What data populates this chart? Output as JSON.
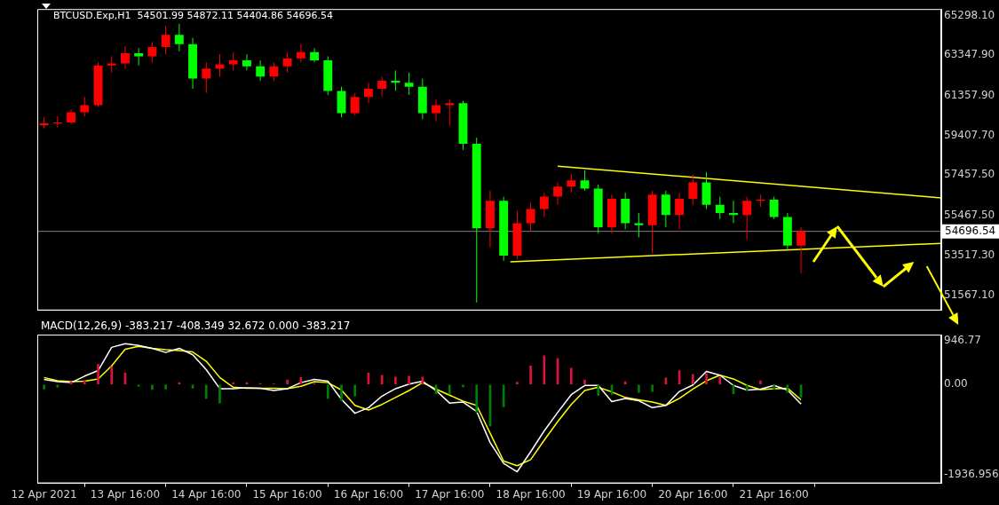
{
  "chart_data": [
    {
      "type": "candlestick",
      "title": "BTCUSD.Exp,H1  54501.99 54872.11 54404.86 54696.54",
      "tick_labels": "y",
      "marker": "none",
      "xlim": [
        "2021-04-12T14:00",
        "2021-04-23T17:30"
      ],
      "xticks": [
        "2021-04-12T16:00",
        "2021-04-13T16:00",
        "2021-04-14T16:00",
        "2021-04-15T16:00",
        "2021-04-16T16:00",
        "2021-04-17T16:00",
        "2021-04-18T16:00",
        "2021-04-19T16:00",
        "2021-04-20T16:00",
        "2021-04-21T16:00"
      ],
      "ylim": [
        50810,
        65620
      ],
      "yticks": [
        {
          "value": 65298.1,
          "label": "65298.10"
        },
        {
          "value": 63347.9,
          "label": "63347.90"
        },
        {
          "value": 61357.9,
          "label": "61357.90"
        },
        {
          "value": 59407.7,
          "label": "59407.70"
        },
        {
          "value": 57457.5,
          "label": "57457.50"
        },
        {
          "value": 55467.5,
          "label": "55467.50"
        },
        {
          "value": 53517.3,
          "label": "53517.30"
        },
        {
          "value": 51567.1,
          "label": "51567.10"
        }
      ],
      "x": [
        "2021-04-12T16:00",
        "2021-04-12T20:00",
        "2021-04-13T00:00",
        "2021-04-13T04:00",
        "2021-04-13T08:00",
        "2021-04-13T12:00",
        "2021-04-13T16:00",
        "2021-04-13T20:00",
        "2021-04-14T00:00",
        "2021-04-14T04:00",
        "2021-04-14T08:00",
        "2021-04-14T12:00",
        "2021-04-14T16:00",
        "2021-04-14T20:00",
        "2021-04-15T00:00",
        "2021-04-15T04:00",
        "2021-04-15T08:00",
        "2021-04-15T12:00",
        "2021-04-15T16:00",
        "2021-04-15T20:00",
        "2021-04-16T00:00",
        "2021-04-16T04:00",
        "2021-04-16T08:00",
        "2021-04-16T12:00",
        "2021-04-16T16:00",
        "2021-04-16T20:00",
        "2021-04-17T00:00",
        "2021-04-17T04:00",
        "2021-04-17T08:00",
        "2021-04-17T12:00",
        "2021-04-17T16:00",
        "2021-04-17T20:00",
        "2021-04-18T00:00",
        "2021-04-18T04:00",
        "2021-04-18T08:00",
        "2021-04-18T12:00",
        "2021-04-18T16:00",
        "2021-04-18T20:00",
        "2021-04-19T00:00",
        "2021-04-19T04:00",
        "2021-04-19T08:00",
        "2021-04-19T12:00",
        "2021-04-19T16:00",
        "2021-04-19T20:00",
        "2021-04-20T00:00",
        "2021-04-20T04:00",
        "2021-04-20T08:00",
        "2021-04-20T12:00",
        "2021-04-20T16:00",
        "2021-04-20T20:00",
        "2021-04-21T00:00",
        "2021-04-21T04:00",
        "2021-04-21T08:00",
        "2021-04-21T12:00",
        "2021-04-21T16:00",
        "2021-04-21T20:00",
        "2021-04-22T00:00"
      ],
      "ohlc": [
        [
          59900,
          60300,
          59750,
          60000
        ],
        [
          60000,
          60350,
          59800,
          60050
        ],
        [
          60050,
          60700,
          59950,
          60550
        ],
        [
          60550,
          61300,
          60350,
          60900
        ],
        [
          60900,
          63000,
          60800,
          62850
        ],
        [
          62850,
          63300,
          62500,
          62950
        ],
        [
          62950,
          63800,
          62700,
          63450
        ],
        [
          63450,
          63700,
          62850,
          63300
        ],
        [
          63300,
          64000,
          63000,
          63750
        ],
        [
          63750,
          64800,
          63400,
          64350
        ],
        [
          64350,
          64900,
          63550,
          63900
        ],
        [
          63900,
          64200,
          61700,
          62200
        ],
        [
          62200,
          63000,
          61500,
          62700
        ],
        [
          62700,
          63400,
          62300,
          62900
        ],
        [
          62900,
          63500,
          62600,
          63100
        ],
        [
          63100,
          63400,
          62600,
          62800
        ],
        [
          62800,
          63100,
          62100,
          62300
        ],
        [
          62300,
          63000,
          62100,
          62800
        ],
        [
          62800,
          63500,
          62500,
          63200
        ],
        [
          63200,
          63900,
          63000,
          63500
        ],
        [
          63500,
          63700,
          63000,
          63100
        ],
        [
          63100,
          63300,
          61400,
          61600
        ],
        [
          61600,
          61800,
          60300,
          60500
        ],
        [
          60500,
          61500,
          60400,
          61300
        ],
        [
          61300,
          62000,
          61000,
          61700
        ],
        [
          61700,
          62300,
          61300,
          62100
        ],
        [
          62100,
          62600,
          61600,
          62000
        ],
        [
          62000,
          62500,
          61400,
          61800
        ],
        [
          61800,
          62200,
          60200,
          60500
        ],
        [
          60500,
          61200,
          60100,
          60900
        ],
        [
          60900,
          61200,
          59900,
          61000
        ],
        [
          61000,
          61100,
          58700,
          59000
        ],
        [
          59000,
          59300,
          51200,
          54850
        ],
        [
          54850,
          56700,
          53900,
          56200
        ],
        [
          56200,
          56400,
          53250,
          53500
        ],
        [
          53500,
          55700,
          53300,
          55100
        ],
        [
          55100,
          56100,
          54700,
          55800
        ],
        [
          55800,
          56600,
          55400,
          56400
        ],
        [
          56400,
          57100,
          56000,
          56900
        ],
        [
          56900,
          57500,
          56600,
          57200
        ],
        [
          57200,
          57700,
          56700,
          56800
        ],
        [
          56800,
          57000,
          54600,
          54900
        ],
        [
          54900,
          56500,
          54600,
          56300
        ],
        [
          56300,
          56600,
          54800,
          55100
        ],
        [
          55100,
          55600,
          54400,
          55000
        ],
        [
          55000,
          56700,
          53600,
          56500
        ],
        [
          56500,
          56700,
          54900,
          55500
        ],
        [
          55500,
          56600,
          54800,
          56300
        ],
        [
          56300,
          57500,
          56000,
          57100
        ],
        [
          57100,
          57600,
          55800,
          56000
        ],
        [
          56000,
          56400,
          55300,
          55600
        ],
        [
          55600,
          56200,
          55100,
          55500
        ],
        [
          55500,
          56400,
          54300,
          56200
        ],
        [
          56200,
          56500,
          55900,
          56250
        ],
        [
          56250,
          56400,
          55300,
          55400
        ],
        [
          55400,
          55600,
          53800,
          54000
        ],
        [
          54000,
          54900,
          52650,
          54700
        ]
      ],
      "colors": [
        "#ff0000",
        "#ff0000",
        "#ff0000",
        "#ff0000",
        "#ff0000",
        "#ff0000",
        "#ff0000",
        "#00ff00",
        "#ff0000",
        "#ff0000",
        "#00ff00",
        "#00ff00",
        "#ff0000",
        "#ff0000",
        "#ff0000",
        "#00ff00",
        "#00ff00",
        "#ff0000",
        "#ff0000",
        "#ff0000",
        "#00ff00",
        "#00ff00",
        "#00ff00",
        "#ff0000",
        "#ff0000",
        "#ff0000",
        "#00ff00",
        "#00ff00",
        "#00ff00",
        "#ff0000",
        "#ff0000",
        "#00ff00",
        "#00ff00",
        "#ff0000",
        "#00ff00",
        "#ff0000",
        "#ff0000",
        "#ff0000",
        "#ff0000",
        "#ff0000",
        "#00ff00",
        "#00ff00",
        "#ff0000",
        "#00ff00",
        "#00ff00",
        "#ff0000",
        "#00ff00",
        "#ff0000",
        "#ff0000",
        "#00ff00",
        "#00ff00",
        "#00ff00",
        "#ff0000",
        "#ff0000",
        "#00ff00",
        "#00ff00",
        "#ff0000"
      ],
      "series": [
        {
          "type": "line",
          "x": [
            "2021-04-19T00:00",
            "2021-04-23T17:30"
          ],
          "values": [
            57900,
            56340
          ],
          "color": "#ffff00"
        },
        {
          "type": "line",
          "x": [
            "2021-04-18T10:00",
            "2021-04-23T17:30"
          ],
          "values": [
            53200,
            54110
          ],
          "color": "#ffff00"
        }
      ],
      "ref_lines": [
        {
          "axis": "y",
          "value": 54696.54,
          "label": "54696.54",
          "color": "#808080"
        }
      ]
    },
    {
      "type": "bar",
      "title": "MACD(12,26,9) -383.217 -408.349 32.672 0.000 -383.217",
      "marker": "none",
      "xlim": [
        "2021-04-12T14:00",
        "2021-04-23T17:30"
      ],
      "xticks": [
        {
          "value": "2021-04-12T16:00",
          "label": "12 Apr 2021"
        },
        {
          "value": "2021-04-13T16:00",
          "label": "13 Apr 16:00"
        },
        {
          "value": "2021-04-14T16:00",
          "label": "14 Apr 16:00"
        },
        {
          "value": "2021-04-15T16:00",
          "label": "15 Apr 16:00"
        },
        {
          "value": "2021-04-16T16:00",
          "label": "16 Apr 16:00"
        },
        {
          "value": "2021-04-17T16:00",
          "label": "17 Apr 16:00"
        },
        {
          "value": "2021-04-18T16:00",
          "label": "18 Apr 16:00"
        },
        {
          "value": "2021-04-19T16:00",
          "label": "19 Apr 16:00"
        },
        {
          "value": "2021-04-20T16:00",
          "label": "20 Apr 16:00"
        },
        {
          "value": "2021-04-21T16:00",
          "label": "21 Apr 16:00"
        }
      ],
      "ylim": [
        -2130,
        1075
      ],
      "yticks": [
        946.77,
        {
          "value": 0,
          "label": "0.00"
        },
        -1936.956
      ],
      "x": [
        "2021-04-12T16:00",
        "2021-04-12T20:00",
        "2021-04-13T00:00",
        "2021-04-13T04:00",
        "2021-04-13T08:00",
        "2021-04-13T12:00",
        "2021-04-13T16:00",
        "2021-04-13T20:00",
        "2021-04-14T00:00",
        "2021-04-14T04:00",
        "2021-04-14T08:00",
        "2021-04-14T12:00",
        "2021-04-14T16:00",
        "2021-04-14T20:00",
        "2021-04-15T00:00",
        "2021-04-15T04:00",
        "2021-04-15T08:00",
        "2021-04-15T12:00",
        "2021-04-15T16:00",
        "2021-04-15T20:00",
        "2021-04-16T00:00",
        "2021-04-16T04:00",
        "2021-04-16T08:00",
        "2021-04-16T12:00",
        "2021-04-16T16:00",
        "2021-04-16T20:00",
        "2021-04-17T00:00",
        "2021-04-17T04:00",
        "2021-04-17T08:00",
        "2021-04-17T12:00",
        "2021-04-17T16:00",
        "2021-04-17T20:00",
        "2021-04-18T00:00",
        "2021-04-18T04:00",
        "2021-04-18T08:00",
        "2021-04-18T12:00",
        "2021-04-18T16:00",
        "2021-04-18T20:00",
        "2021-04-19T00:00",
        "2021-04-19T04:00",
        "2021-04-19T08:00",
        "2021-04-19T12:00",
        "2021-04-19T16:00",
        "2021-04-19T20:00",
        "2021-04-20T00:00",
        "2021-04-20T04:00",
        "2021-04-20T08:00",
        "2021-04-20T12:00",
        "2021-04-20T16:00",
        "2021-04-20T20:00",
        "2021-04-21T00:00",
        "2021-04-21T04:00",
        "2021-04-21T08:00",
        "2021-04-21T12:00",
        "2021-04-21T16:00",
        "2021-04-21T20:00",
        "2021-04-22T00:00"
      ],
      "series": [
        {
          "type": "bar",
          "values": [
            -100,
            -60,
            60,
            90,
            440,
            380,
            250,
            -40,
            -110,
            -100,
            40,
            -80,
            -300,
            -400,
            40,
            40,
            20,
            10,
            100,
            150,
            20,
            -300,
            -350,
            -250,
            250,
            200,
            160,
            180,
            160,
            -200,
            -210,
            -50,
            -600,
            -900,
            -480,
            50,
            400,
            620,
            560,
            350,
            100,
            -240,
            -220,
            60,
            -170,
            -150,
            140,
            300,
            220,
            230,
            150,
            -200,
            -130,
            80,
            -100,
            -170,
            -270
          ],
          "colors": [
            "#007f00",
            "#007f00",
            "#dc143c",
            "#dc143c",
            "#dc143c",
            "#dc143c",
            "#dc143c",
            "#007f00",
            "#007f00",
            "#007f00",
            "#dc143c",
            "#007f00",
            "#007f00",
            "#007f00",
            "#dc143c",
            "#dc143c",
            "#dc143c",
            "#dc143c",
            "#dc143c",
            "#dc143c",
            "#dc143c",
            "#007f00",
            "#007f00",
            "#007f00",
            "#dc143c",
            "#dc143c",
            "#dc143c",
            "#dc143c",
            "#dc143c",
            "#007f00",
            "#007f00",
            "#007f00",
            "#007f00",
            "#007f00",
            "#007f00",
            "#dc143c",
            "#dc143c",
            "#dc143c",
            "#dc143c",
            "#dc143c",
            "#dc143c",
            "#007f00",
            "#007f00",
            "#dc143c",
            "#007f00",
            "#007f00",
            "#dc143c",
            "#dc143c",
            "#dc143c",
            "#dc143c",
            "#dc143c",
            "#007f00",
            "#007f00",
            "#dc143c",
            "#007f00",
            "#007f00",
            "#007f00"
          ]
        },
        {
          "type": "line",
          "color": "#ffffff",
          "values": [
            110,
            60,
            40,
            180,
            300,
            800,
            880,
            840,
            780,
            690,
            780,
            640,
            320,
            -90,
            -90,
            -70,
            -80,
            -130,
            -90,
            40,
            110,
            70,
            -320,
            -620,
            -500,
            -250,
            -90,
            10,
            70,
            -130,
            -400,
            -380,
            -580,
            -1250,
            -1700,
            -1880,
            -1450,
            -1000,
            -600,
            -220,
            -20,
            -20,
            -370,
            -300,
            -350,
            -500,
            -450,
            -150,
            -10,
            280,
            200,
            -20,
            -120,
            -100,
            -20,
            -120,
            -420
          ]
        },
        {
          "type": "line",
          "color": "#ffff00",
          "values": [
            150,
            80,
            60,
            70,
            120,
            400,
            760,
            820,
            780,
            750,
            730,
            700,
            500,
            150,
            -60,
            -80,
            -80,
            -80,
            -90,
            -40,
            60,
            40,
            -120,
            -450,
            -550,
            -430,
            -280,
            -130,
            40,
            -100,
            -230,
            -360,
            -450,
            -1050,
            -1650,
            -1750,
            -1620,
            -1200,
            -800,
            -430,
            -130,
            -60,
            -160,
            -280,
            -330,
            -380,
            -450,
            -300,
            -100,
            80,
            200,
            120,
            -20,
            -110,
            -90,
            -80,
            -330
          ]
        }
      ]
    }
  ]
}
